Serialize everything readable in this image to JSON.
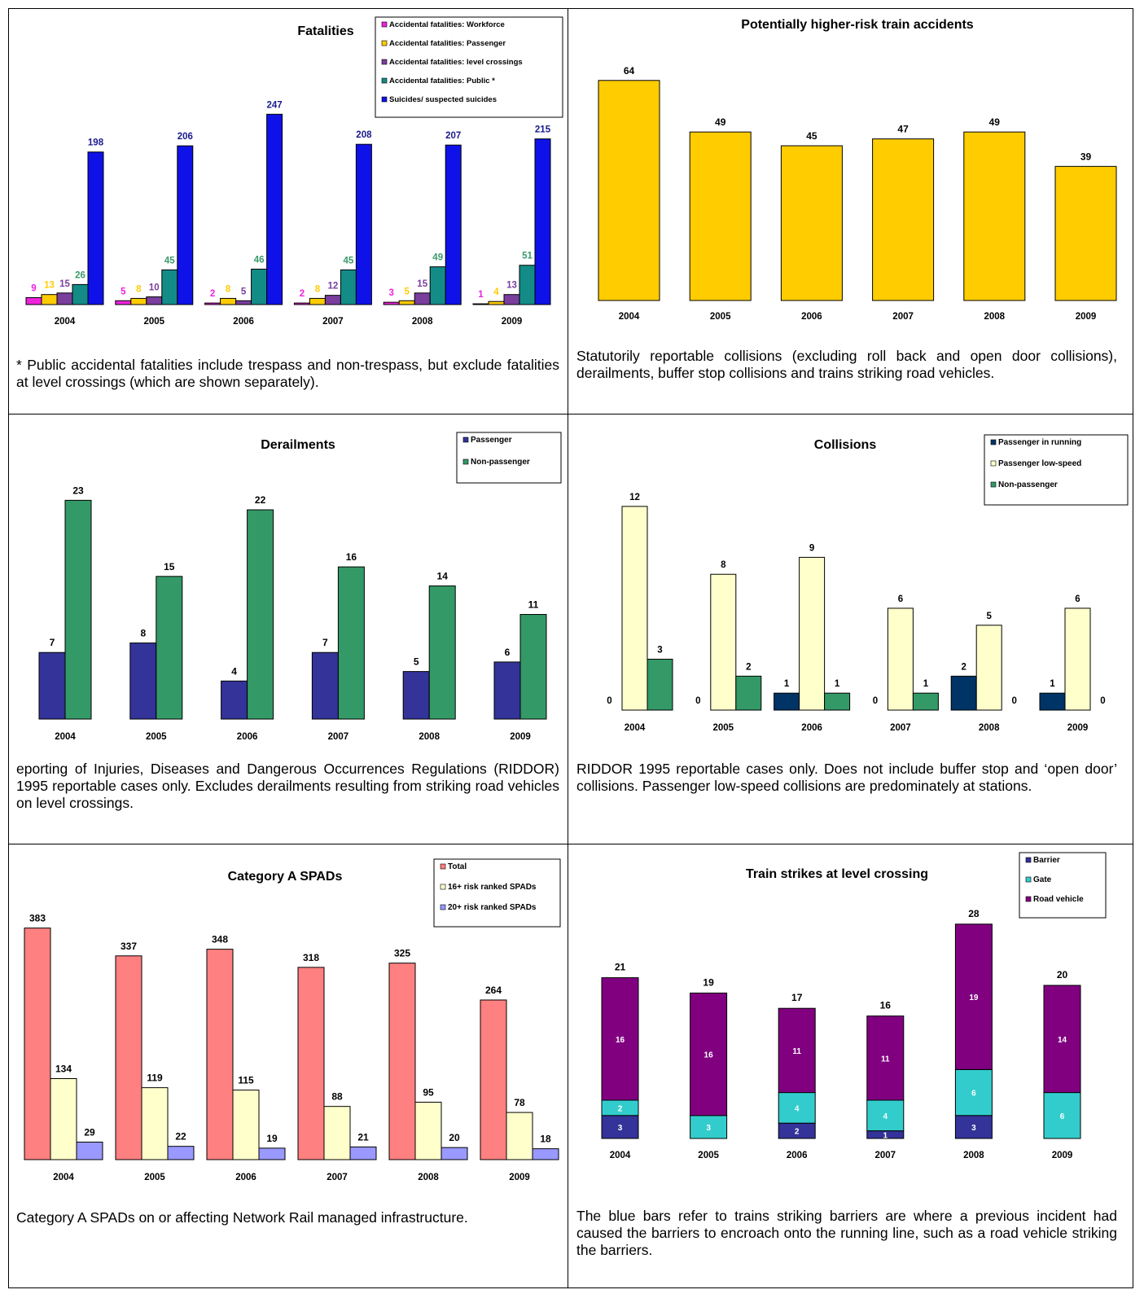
{
  "panels": [
    {
      "id": "fatalities",
      "caption": "* Public accidental fatalities include trespass and non-trespass, but exclude fatalities at level crossings (which are shown separately).",
      "chart_data": {
        "type": "bar",
        "title": "Fatalities",
        "categories": [
          "2004",
          "2005",
          "2006",
          "2007",
          "2008",
          "2009"
        ],
        "series": [
          {
            "name": "Accidental fatalities: Workforce",
            "color": "#ee22dd",
            "label_color": "#ee22dd",
            "values": [
              9,
              5,
              2,
              2,
              3,
              1
            ]
          },
          {
            "name": "Accidental fatalities: Passenger",
            "color": "#ffcc00",
            "label_color": "#ffcc00",
            "values": [
              13,
              8,
              8,
              8,
              5,
              4
            ]
          },
          {
            "name": "Accidental fatalities: level crossings",
            "color": "#7a3e9d",
            "label_color": "#7a3e9d",
            "values": [
              15,
              10,
              5,
              12,
              15,
              13
            ]
          },
          {
            "name": "Accidental fatalities: Public *",
            "color": "#138c88",
            "label_color": "#3a9a6a",
            "values": [
              26,
              45,
              46,
              45,
              49,
              51
            ]
          },
          {
            "name": "Suicides/ suspected suicides",
            "color": "#0f12e8",
            "label_color": "#1a1a8c",
            "values": [
              198,
              206,
              247,
              208,
              207,
              215
            ]
          }
        ],
        "ylim": [
          0,
          260
        ],
        "legend": "top-right",
        "grid": false
      }
    },
    {
      "id": "train-accidents",
      "caption": "Statutorily reportable collisions (excluding roll back and open door collisions), derailments, buffer stop collisions and trains striking road vehicles.",
      "chart_data": {
        "type": "bar",
        "title": "Potentially higher-risk train accidents",
        "categories": [
          "2004",
          "2005",
          "2006",
          "2007",
          "2008",
          "2009"
        ],
        "series": [
          {
            "name": "",
            "color": "#ffcc00",
            "label_color": "#000000",
            "values": [
              64,
              49,
              45,
              47,
              49,
              39
            ]
          }
        ],
        "ylim": [
          0,
          72
        ],
        "grid": false
      }
    },
    {
      "id": "derailments",
      "caption": "eporting of Injuries, Diseases and Dangerous Occurrences Regulations (RIDDOR) 1995 reportable cases only.  Excludes derailments resulting from striking road vehicles on level crossings.",
      "chart_data": {
        "type": "bar",
        "title": "Derailments",
        "categories": [
          "2004",
          "2005",
          "2006",
          "2007",
          "2008",
          "2009"
        ],
        "series": [
          {
            "name": "Passenger",
            "color": "#333399",
            "label_color": "#000000",
            "values": [
              7,
              8,
              4,
              7,
              5,
              6
            ]
          },
          {
            "name": "Non-passenger",
            "color": "#339966",
            "label_color": "#000000",
            "values": [
              23,
              15,
              22,
              16,
              14,
              11
            ]
          }
        ],
        "ylim": [
          0,
          25
        ],
        "legend": "top-right",
        "grid": false
      }
    },
    {
      "id": "collisions",
      "caption": "RIDDOR 1995 reportable cases only.  Does not include buffer stop and ‘open door’ collisions.   Passenger low-speed collisions are predominately at stations.",
      "chart_data": {
        "type": "bar",
        "title": "Collisions",
        "categories": [
          "2004",
          "2005",
          "2006",
          "2007",
          "2008",
          "2009"
        ],
        "series": [
          {
            "name": "Passenger in running",
            "color": "#003366",
            "label_color": "#000000",
            "values": [
              0,
              0,
              1,
              0,
              2,
              1
            ]
          },
          {
            "name": "Passenger low-speed",
            "color": "#ffffcc",
            "label_color": "#000000",
            "values": [
              12,
              8,
              9,
              6,
              5,
              6
            ]
          },
          {
            "name": "Non-passenger",
            "color": "#339966",
            "label_color": "#000000",
            "values": [
              3,
              2,
              1,
              1,
              0,
              0
            ]
          }
        ],
        "ylim": [
          0,
          13
        ],
        "legend": "top-right",
        "grid": false
      }
    },
    {
      "id": "spads",
      "caption": "Category A SPADs on or affecting Network Rail managed infrastructure.",
      "chart_data": {
        "type": "bar",
        "title": "Category A SPADs",
        "categories": [
          "2004",
          "2005",
          "2006",
          "2007",
          "2008",
          "2009"
        ],
        "series": [
          {
            "name": "Total",
            "color": "#ff8080",
            "label_color": "#000000",
            "values": [
              383,
              337,
              348,
              318,
              325,
              264
            ]
          },
          {
            "name": "16+ risk ranked SPADs",
            "color": "#ffffcc",
            "label_color": "#000000",
            "values": [
              134,
              119,
              115,
              88,
              95,
              78
            ]
          },
          {
            "name": "20+ risk ranked SPADs",
            "color": "#9999ff",
            "label_color": "#000000",
            "values": [
              29,
              22,
              19,
              21,
              20,
              18
            ]
          }
        ],
        "ylim": [
          0,
          400
        ],
        "legend": "top-right",
        "grid": false
      }
    },
    {
      "id": "level-crossing",
      "caption": "The blue bars refer to trains striking barriers are where a previous incident had caused the barriers to encroach onto the running line, such as a road vehicle striking the barriers.",
      "chart_data": {
        "type": "stacked-bar",
        "title": "Train strikes at level crossing",
        "categories": [
          "2004",
          "2005",
          "2006",
          "2007",
          "2008",
          "2009"
        ],
        "series": [
          {
            "name": "Barrier",
            "color": "#333399",
            "values": [
              3,
              0,
              2,
              1,
              3,
              0
            ]
          },
          {
            "name": "Gate",
            "color": "#33cccc",
            "values": [
              2,
              3,
              4,
              4,
              6,
              6
            ]
          },
          {
            "name": "Road vehicle",
            "color": "#800080",
            "values": [
              16,
              16,
              11,
              11,
              19,
              14
            ]
          }
        ],
        "totals": [
          21,
          19,
          17,
          16,
          28,
          20
        ],
        "ylim": [
          0,
          30
        ],
        "legend": "top-right",
        "grid": false
      }
    }
  ]
}
